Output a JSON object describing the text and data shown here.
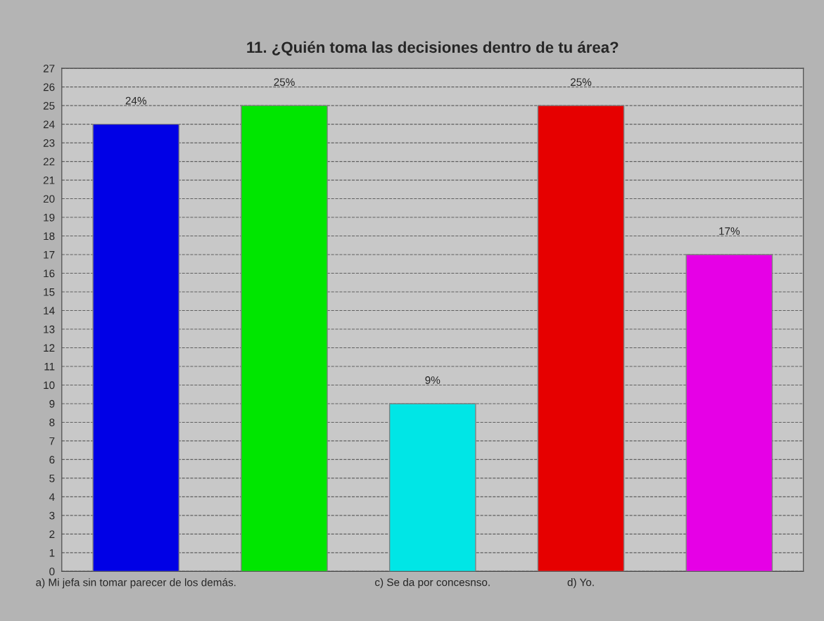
{
  "chart_data": {
    "type": "bar",
    "title": "11. ¿Quién toma las decisiones dentro de tu área?",
    "categories": [
      "a) Mi jefa sin tomar parecer de los demás.",
      null,
      "c) Se da por concesnso.",
      "d) Yo.",
      null
    ],
    "values": [
      24,
      25,
      9,
      25,
      17
    ],
    "colors": [
      "#0000e6",
      "#00e600",
      "#00e6e6",
      "#e60000",
      "#e600e6"
    ],
    "value_labels": [
      "24%",
      "25%",
      "9%",
      "25%",
      "17%"
    ],
    "ylim": [
      0,
      27
    ],
    "yticks": [
      0,
      1,
      2,
      3,
      4,
      5,
      6,
      7,
      8,
      9,
      10,
      11,
      12,
      13,
      14,
      15,
      16,
      17,
      18,
      19,
      20,
      21,
      22,
      23,
      24,
      25,
      26,
      27
    ],
    "grid": "y"
  }
}
